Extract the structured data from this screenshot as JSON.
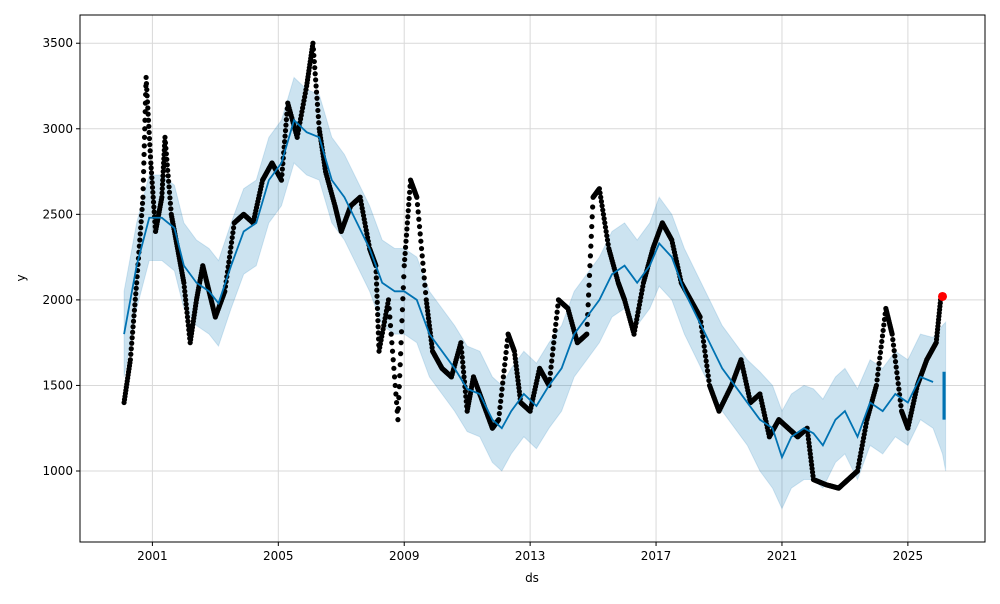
{
  "chart_data": {
    "type": "line",
    "title": "",
    "xlabel": "ds",
    "ylabel": "y",
    "xlim": [
      1998.7,
      2027.45
    ],
    "ylim": [
      585,
      3665
    ],
    "grid": true,
    "xticks": [
      2001,
      2005,
      2009,
      2013,
      2017,
      2021,
      2025
    ],
    "yticks": [
      1000,
      1500,
      2000,
      2500,
      3000,
      3500
    ],
    "colors": {
      "forecast": "#0072B2",
      "interval": "#0072B2",
      "observed": "#000000",
      "highlight": "#ff0000",
      "grid": "#d9d9d9"
    },
    "forecast": {
      "x": [
        2000.1,
        2000.5,
        2000.9,
        2001.3,
        2001.7,
        2002.0,
        2002.4,
        2002.8,
        2003.1,
        2003.5,
        2003.9,
        2004.3,
        2004.7,
        2005.1,
        2005.5,
        2005.9,
        2006.3,
        2006.7,
        2007.1,
        2007.5,
        2007.9,
        2008.3,
        2008.7,
        2009.0,
        2009.4,
        2009.8,
        2010.2,
        2010.6,
        2011.0,
        2011.4,
        2011.8,
        2012.1,
        2012.4,
        2012.8,
        2013.2,
        2013.6,
        2014.0,
        2014.4,
        2014.8,
        2015.2,
        2015.6,
        2016.0,
        2016.4,
        2016.8,
        2017.1,
        2017.5,
        2017.9,
        2018.3,
        2018.7,
        2019.1,
        2019.5,
        2019.9,
        2020.3,
        2020.7,
        2021.0,
        2021.3,
        2021.7,
        2022.0,
        2022.3,
        2022.7,
        2023.0,
        2023.4,
        2023.8,
        2024.2,
        2024.6,
        2025.0,
        2025.4,
        2025.8,
        2026.1,
        2026.2
      ],
      "yhat": [
        1800,
        2200,
        2480,
        2480,
        2420,
        2200,
        2100,
        2050,
        1980,
        2200,
        2400,
        2450,
        2700,
        2800,
        3050,
        2980,
        2950,
        2700,
        2600,
        2450,
        2300,
        2100,
        2050,
        2050,
        2000,
        1800,
        1700,
        1600,
        1480,
        1450,
        1300,
        1250,
        1350,
        1450,
        1380,
        1500,
        1600,
        1800,
        1900,
        2000,
        2150,
        2200,
        2100,
        2200,
        2330,
        2250,
        2050,
        1900,
        1750,
        1600,
        1500,
        1400,
        1300,
        1250,
        1080,
        1200,
        1250,
        1220,
        1150,
        1300,
        1350,
        1200,
        1400,
        1350,
        1450,
        1400,
        1550,
        1520,
        1500,
        1560
      ],
      "yhat_lower": [
        1550,
        1950,
        2230,
        2230,
        2170,
        1950,
        1850,
        1800,
        1730,
        1950,
        2150,
        2200,
        2450,
        2550,
        2800,
        2730,
        2700,
        2450,
        2350,
        2200,
        2050,
        1850,
        1800,
        1800,
        1750,
        1550,
        1450,
        1350,
        1230,
        1200,
        1050,
        1000,
        1100,
        1200,
        1130,
        1250,
        1350,
        1550,
        1650,
        1750,
        1900,
        1950,
        1850,
        1950,
        2080,
        2000,
        1800,
        1650,
        1500,
        1350,
        1250,
        1150,
        1000,
        900,
        780,
        900,
        950,
        950,
        900,
        1050,
        1100,
        950,
        1150,
        1100,
        1200,
        1150,
        1300,
        1250,
        1100,
        1000
      ],
      "yhat_upper": [
        2050,
        2450,
        2730,
        2730,
        2670,
        2450,
        2350,
        2300,
        2230,
        2450,
        2650,
        2700,
        2950,
        3050,
        3300,
        3230,
        3200,
        2950,
        2850,
        2700,
        2550,
        2350,
        2300,
        2300,
        2250,
        2050,
        1950,
        1850,
        1730,
        1700,
        1550,
        1500,
        1600,
        1700,
        1630,
        1750,
        1850,
        2050,
        2150,
        2250,
        2400,
        2450,
        2350,
        2450,
        2600,
        2500,
        2300,
        2150,
        2000,
        1850,
        1750,
        1650,
        1580,
        1500,
        1350,
        1450,
        1500,
        1480,
        1420,
        1550,
        1600,
        1480,
        1650,
        1600,
        1700,
        1650,
        1800,
        1780,
        1850,
        1870
      ]
    },
    "observed": {
      "x": [
        2000.1,
        2000.3,
        2000.5,
        2000.7,
        2000.8,
        2000.95,
        2001.1,
        2001.3,
        2001.4,
        2001.6,
        2001.8,
        2002.0,
        2002.2,
        2002.4,
        2002.6,
        2002.8,
        2003.0,
        2003.3,
        2003.6,
        2003.9,
        2004.2,
        2004.5,
        2004.8,
        2005.1,
        2005.3,
        2005.6,
        2005.9,
        2006.1,
        2006.3,
        2006.5,
        2006.8,
        2007.0,
        2007.3,
        2007.6,
        2007.9,
        2008.1,
        2008.2,
        2008.5,
        2008.8,
        2009.0,
        2009.2,
        2009.4,
        2009.7,
        2009.9,
        2010.2,
        2010.5,
        2010.8,
        2011.0,
        2011.2,
        2011.5,
        2011.8,
        2012.0,
        2012.3,
        2012.5,
        2012.7,
        2013.0,
        2013.3,
        2013.6,
        2013.9,
        2014.2,
        2014.5,
        2014.8,
        2015.0,
        2015.2,
        2015.5,
        2015.8,
        2016.0,
        2016.3,
        2016.6,
        2016.9,
        2017.2,
        2017.5,
        2017.8,
        2018.1,
        2018.4,
        2018.7,
        2019.0,
        2019.4,
        2019.7,
        2020.0,
        2020.3,
        2020.6,
        2020.9,
        2021.2,
        2021.5,
        2021.8,
        2022.0,
        2022.4,
        2022.8,
        2023.1,
        2023.4,
        2023.7,
        2024.0,
        2024.3,
        2024.5,
        2024.8,
        2025.0,
        2025.3,
        2025.6,
        2025.9,
        2026.05
      ],
      "y": [
        1400,
        1650,
        2100,
        2600,
        3300,
        2800,
        2400,
        2600,
        2950,
        2500,
        2300,
        2100,
        1750,
        2000,
        2200,
        2050,
        1900,
        2050,
        2450,
        2500,
        2450,
        2700,
        2800,
        2700,
        3150,
        2950,
        3250,
        3500,
        3000,
        2750,
        2550,
        2400,
        2550,
        2600,
        2300,
        2200,
        1700,
        2000,
        1300,
        2200,
        2700,
        2600,
        2000,
        1700,
        1600,
        1550,
        1750,
        1350,
        1550,
        1400,
        1250,
        1300,
        1800,
        1700,
        1400,
        1350,
        1600,
        1500,
        2000,
        1950,
        1750,
        1800,
        2600,
        2650,
        2300,
        2100,
        2000,
        1800,
        2100,
        2300,
        2450,
        2350,
        2100,
        2000,
        1900,
        1500,
        1350,
        1500,
        1650,
        1400,
        1450,
        1200,
        1300,
        1250,
        1200,
        1250,
        950,
        920,
        900,
        950,
        1000,
        1300,
        1500,
        1950,
        1800,
        1350,
        1250,
        1500,
        1650,
        1750,
        2020
      ]
    },
    "highlight_point": {
      "x": 2026.1,
      "y": 2020
    }
  }
}
